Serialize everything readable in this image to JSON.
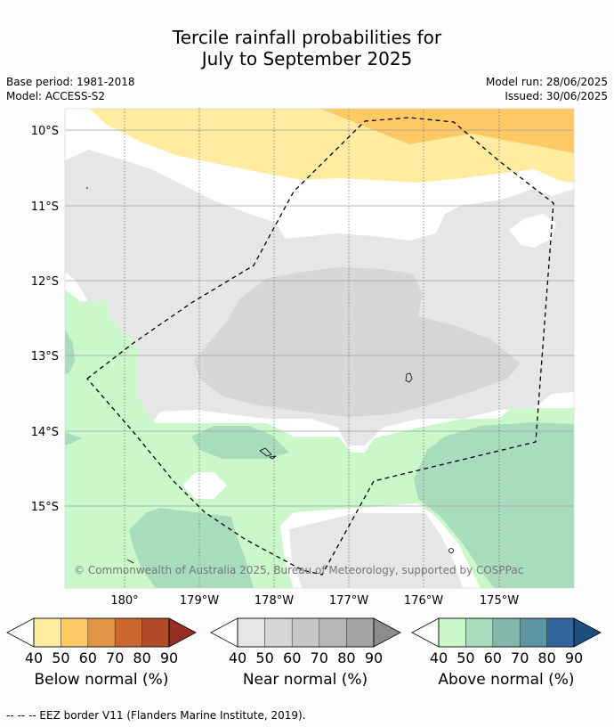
{
  "title": {
    "line1": "Tercile rainfall probabilities for",
    "line2": "July to September 2025"
  },
  "meta": {
    "base_period": "Base period: 1981-2018",
    "model": "Model: ACCESS-S2",
    "model_run": "Model run: 28/06/2025",
    "issued": "Issued: 30/06/2025"
  },
  "map": {
    "lat_labels": [
      "10°S",
      "11°S",
      "12°S",
      "13°S",
      "14°S",
      "15°S"
    ],
    "lon_labels": [
      "180°",
      "179°W",
      "178°W",
      "177°W",
      "176°W",
      "175°W"
    ],
    "copyright": "© Commonwealth of Australia 2025, Bureau of Meteorology, supported by COSPPac"
  },
  "colorbars": [
    {
      "label": "Below normal (%)",
      "ticks": [
        "40",
        "50",
        "60",
        "70",
        "80",
        "90"
      ],
      "colors": [
        "#ffeca0",
        "#ffc966",
        "#e09545",
        "#cd6530",
        "#b04a27",
        "#952e22"
      ]
    },
    {
      "label": "Near normal (%)",
      "ticks": [
        "40",
        "50",
        "60",
        "70",
        "80",
        "90"
      ],
      "colors": [
        "#e6e6e6",
        "#d6d6d6",
        "#c7c7c7",
        "#b6b6b6",
        "#a3a3a3",
        "#8c8c8c"
      ]
    },
    {
      "label": "Above normal (%)",
      "ticks": [
        "40",
        "50",
        "60",
        "70",
        "80",
        "90"
      ],
      "colors": [
        "#caf8cb",
        "#a9dcbd",
        "#82b8ac",
        "#5d96a2",
        "#33669c",
        "#1c4e80"
      ]
    }
  ],
  "footer": "-- -- -- EEZ border V11 (Flanders Marine Institute, 2019)."
}
